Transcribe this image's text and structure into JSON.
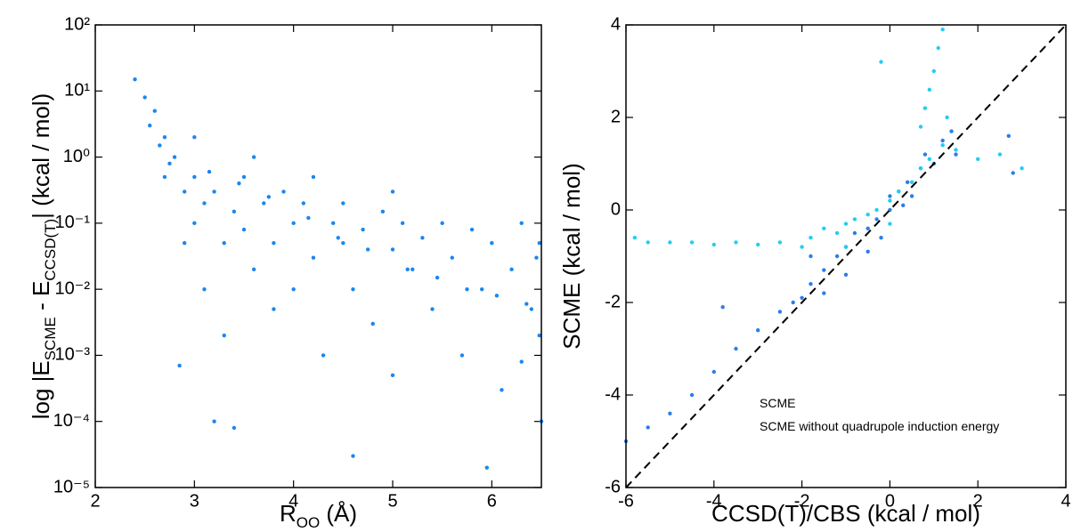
{
  "chart_data": [
    {
      "type": "scatter",
      "xlabel": [
        "R",
        "OO",
        " (Å)"
      ],
      "ylabel": [
        "log |E",
        "SCME",
        " - E",
        "CCSD(T)",
        "|  (kcal / mol)"
      ],
      "xlim": [
        2,
        6.5
      ],
      "ylim": [
        1e-05,
        100
      ],
      "log_y": true,
      "xticks": [
        2,
        3,
        4,
        5,
        6
      ],
      "yticks": [
        {
          "value": 1e-05,
          "label": "10⁻⁵"
        },
        {
          "value": 0.0001,
          "label": "10⁻⁴"
        },
        {
          "value": 0.001,
          "label": "10⁻³"
        },
        {
          "value": 0.01,
          "label": "10⁻²"
        },
        {
          "value": 0.1,
          "label": "10⁻¹"
        },
        {
          "value": 1,
          "label": "10⁰"
        },
        {
          "value": 10,
          "label": "10¹"
        },
        {
          "value": 100,
          "label": "10²"
        }
      ],
      "series": [
        {
          "color": "#1a86f0",
          "x": [
            2.4,
            2.5,
            2.55,
            2.6,
            2.7,
            2.7,
            2.8,
            2.9,
            2.9,
            3.0,
            3.0,
            3.1,
            3.1,
            3.2,
            3.3,
            3.3,
            3.4,
            3.5,
            3.5,
            3.6,
            3.7,
            3.8,
            3.8,
            3.9,
            4.0,
            4.0,
            4.1,
            4.2,
            4.3,
            4.4,
            4.5,
            4.5,
            4.6,
            4.7,
            4.8,
            4.9,
            5.0,
            5.0,
            5.1,
            5.2,
            5.3,
            5.4,
            5.5,
            5.6,
            5.7,
            5.8,
            5.9,
            6.0,
            6.1,
            6.2,
            6.3,
            6.4,
            6.45,
            6.5,
            3.2,
            3.4,
            4.6,
            2.85,
            3.0,
            3.6,
            4.2,
            5.0,
            2.65,
            2.75,
            3.15,
            3.45,
            3.75,
            4.15,
            4.45,
            4.75,
            5.15,
            5.45,
            5.75,
            6.05,
            6.35,
            6.48,
            6.48,
            6.3,
            5.95
          ],
          "y": [
            15,
            8,
            3,
            5,
            2,
            0.5,
            1,
            0.3,
            0.05,
            0.5,
            0.1,
            0.2,
            0.01,
            0.3,
            0.05,
            0.002,
            0.15,
            0.08,
            0.5,
            0.02,
            0.2,
            0.05,
            0.005,
            0.3,
            0.1,
            0.01,
            0.2,
            0.03,
            0.001,
            0.1,
            0.05,
            0.2,
            0.01,
            0.08,
            0.003,
            0.15,
            0.04,
            0.0005,
            0.1,
            0.02,
            0.06,
            0.005,
            0.1,
            0.03,
            0.001,
            0.08,
            0.01,
            0.05,
            0.0003,
            0.02,
            0.1,
            0.005,
            0.03,
            0.0001,
            0.0001,
            8e-05,
            3e-05,
            0.0007,
            2,
            1,
            0.5,
            0.3,
            1.5,
            0.8,
            0.6,
            0.4,
            0.25,
            0.12,
            0.06,
            0.04,
            0.02,
            0.015,
            0.01,
            0.008,
            0.006,
            0.05,
            0.002,
            0.0008,
            2e-05
          ]
        }
      ]
    },
    {
      "type": "scatter",
      "xlabel": "CCSD(T)/CBS (kcal / mol)",
      "ylabel": "SCME (kcal / mol)",
      "xlim": [
        -6,
        4
      ],
      "ylim": [
        -6,
        4
      ],
      "xticks": [
        -6,
        -4,
        -2,
        0,
        2,
        4
      ],
      "yticks": [
        -6,
        -4,
        -2,
        0,
        2,
        4
      ],
      "diagonal": true,
      "series": [
        {
          "name": "SCME",
          "color": "#2b7de9",
          "x": [
            -6,
            -5.5,
            -5,
            -4.5,
            -4,
            -3.5,
            -3,
            -2.5,
            -2,
            -1.8,
            -1.5,
            -1.5,
            -1.2,
            -1,
            -1,
            -0.8,
            -0.5,
            -0.5,
            -0.3,
            0,
            0,
            0.2,
            0.4,
            0.5,
            0.7,
            0.8,
            1,
            1.2,
            1.4,
            1.5,
            2.7,
            2.8,
            -1.8,
            -2.2,
            -3.8,
            -0.2,
            0.3
          ],
          "y": [
            -5,
            -4.7,
            -4.4,
            -4,
            -3.5,
            -3,
            -2.6,
            -2.2,
            -1.9,
            -1.6,
            -1.3,
            -1.8,
            -1.0,
            -0.8,
            -1.4,
            -0.5,
            -0.4,
            -0.9,
            -0.2,
            0,
            0.3,
            0.4,
            0.6,
            0.3,
            0.9,
            1.2,
            1.0,
            1.5,
            1.7,
            1.2,
            1.6,
            0.8,
            -1.0,
            -2.0,
            -2.1,
            -0.6,
            0.1
          ]
        },
        {
          "name": "SCME without quadrupole induction energy",
          "color": "#22cdf2",
          "x": [
            -5.8,
            -5.5,
            -5,
            -4.5,
            -4,
            -3.5,
            -3,
            -2.5,
            -2,
            -1.8,
            -1.5,
            -1.2,
            -1,
            -0.8,
            -0.5,
            -0.3,
            0,
            0.2,
            0.5,
            0.7,
            0.9,
            1.2,
            1.5,
            2,
            2.5,
            3,
            -0.2,
            0.8,
            0.9,
            1.0,
            1.1,
            1.2,
            0.7,
            1.3,
            -1.0,
            0
          ],
          "y": [
            -0.6,
            -0.7,
            -0.7,
            -0.7,
            -0.75,
            -0.7,
            -0.75,
            -0.7,
            -0.8,
            -0.6,
            -0.4,
            -0.5,
            -0.3,
            -0.2,
            -0.1,
            0,
            0.2,
            0.4,
            0.6,
            0.9,
            1.1,
            1.4,
            1.3,
            1.1,
            1.2,
            0.9,
            3.2,
            2.2,
            2.6,
            3.0,
            3.5,
            3.9,
            1.8,
            2.0,
            -0.8,
            -0.3
          ]
        }
      ]
    }
  ]
}
